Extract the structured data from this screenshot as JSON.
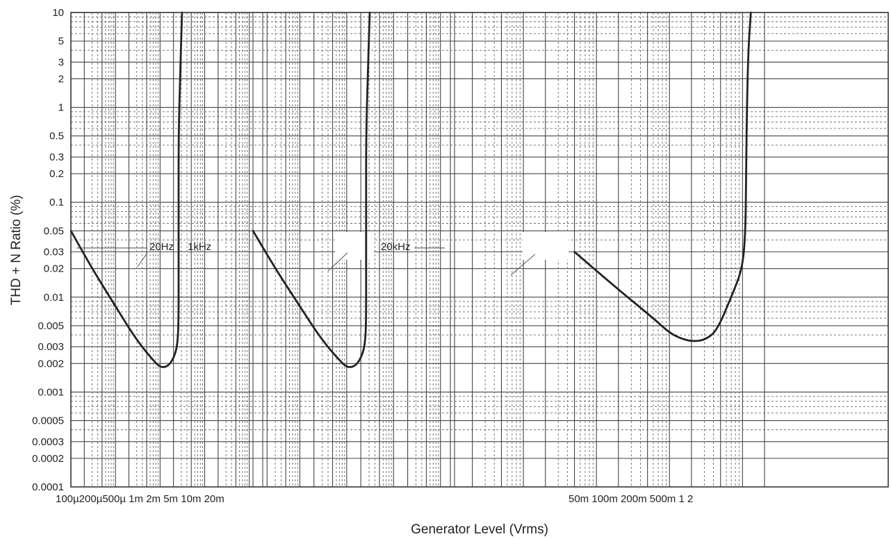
{
  "chart_data": {
    "type": "line",
    "title": "",
    "xlabel": "Generator Level (Vrms)",
    "ylabel": "THD + N Ratio (%)",
    "x_scale": "log",
    "y_scale": "log",
    "x_axis_layout": "three-segment broken axis",
    "xlim": [
      0.0001,
      2
    ],
    "ylim": [
      0.0001,
      10
    ],
    "grid": true,
    "y_ticks": [
      {
        "value": 10,
        "label": "10"
      },
      {
        "value": 5,
        "label": "5"
      },
      {
        "value": 3,
        "label": "3"
      },
      {
        "value": 2,
        "label": "2"
      },
      {
        "value": 1,
        "label": "1"
      },
      {
        "value": 0.5,
        "label": "0.5"
      },
      {
        "value": 0.3,
        "label": "0.3"
      },
      {
        "value": 0.2,
        "label": "0.2"
      },
      {
        "value": 0.1,
        "label": "0.1"
      },
      {
        "value": 0.05,
        "label": "0.05"
      },
      {
        "value": 0.03,
        "label": "0.03"
      },
      {
        "value": 0.02,
        "label": "0.02"
      },
      {
        "value": 0.01,
        "label": "0.01"
      },
      {
        "value": 0.005,
        "label": "0.005"
      },
      {
        "value": 0.003,
        "label": "0.003"
      },
      {
        "value": 0.002,
        "label": "0.002"
      },
      {
        "value": 0.001,
        "label": "0.001"
      },
      {
        "value": 0.0005,
        "label": "0.0005"
      },
      {
        "value": 0.0003,
        "label": "0.0003"
      },
      {
        "value": 0.0002,
        "label": "0.0002"
      },
      {
        "value": 0.0001,
        "label": "0.0001"
      }
    ],
    "x_tick_labels": [
      {
        "segment": 0,
        "value": 0.0001,
        "label": "100µ"
      },
      {
        "segment": 0,
        "value": 0.0002,
        "label": "200µ"
      },
      {
        "segment": 0,
        "value": 0.0005,
        "label": "500µ"
      },
      {
        "segment": 0,
        "value": 0.001,
        "label": "1m"
      },
      {
        "segment": 0,
        "value": 0.002,
        "label": "2m"
      },
      {
        "segment": 0,
        "value": 0.005,
        "label": "5m"
      },
      {
        "segment": 0,
        "value": 0.01,
        "label": "10m"
      },
      {
        "segment": 0,
        "value": 0.02,
        "label": "20m"
      },
      {
        "segment": 2,
        "value": 0.05,
        "label": "50m"
      },
      {
        "segment": 2,
        "value": 0.1,
        "label": "100m"
      },
      {
        "segment": 2,
        "value": 0.2,
        "label": "200m"
      },
      {
        "segment": 2,
        "value": 0.5,
        "label": "500m"
      },
      {
        "segment": 2,
        "value": 1,
        "label": "1"
      },
      {
        "segment": 2,
        "value": 2,
        "label": "2"
      }
    ],
    "annotations": [
      {
        "text": "20Hz",
        "series": 0
      },
      {
        "text": "1kHz",
        "series": 1
      },
      {
        "text": "20kHz",
        "series": 2
      }
    ],
    "series": [
      {
        "name": "20Hz",
        "color": "#222222",
        "points": [
          [
            0.0001,
            0.05
          ],
          [
            0.0003,
            0.02
          ],
          [
            0.001,
            0.008
          ],
          [
            0.003,
            0.0035
          ],
          [
            0.008,
            0.002
          ],
          [
            0.011,
            0.0018
          ],
          [
            0.016,
            0.0019
          ],
          [
            0.022,
            0.0025
          ],
          [
            0.025,
            0.0035
          ],
          [
            0.026,
            0.006
          ],
          [
            0.026,
            0.02
          ],
          [
            0.026,
            0.1
          ],
          [
            0.026,
            0.5
          ],
          [
            0.028,
            2
          ],
          [
            0.031,
            10
          ]
        ]
      },
      {
        "name": "1kHz",
        "color": "#222222",
        "points": [
          [
            0.0001,
            0.05
          ],
          [
            0.0003,
            0.02
          ],
          [
            0.001,
            0.008
          ],
          [
            0.003,
            0.0035
          ],
          [
            0.008,
            0.002
          ],
          [
            0.011,
            0.0018
          ],
          [
            0.016,
            0.0019
          ],
          [
            0.022,
            0.0025
          ],
          [
            0.025,
            0.0035
          ],
          [
            0.026,
            0.006
          ],
          [
            0.026,
            0.02
          ],
          [
            0.026,
            0.1
          ],
          [
            0.026,
            0.5
          ],
          [
            0.028,
            2
          ],
          [
            0.031,
            10
          ]
        ]
      },
      {
        "name": "20kHz",
        "color": "#222222",
        "points": [
          [
            0.005,
            0.03
          ],
          [
            0.02,
            0.012
          ],
          [
            0.06,
            0.006
          ],
          [
            0.1,
            0.0042
          ],
          [
            0.15,
            0.0036
          ],
          [
            0.22,
            0.0034
          ],
          [
            0.32,
            0.0036
          ],
          [
            0.45,
            0.0045
          ],
          [
            0.7,
            0.01
          ],
          [
            1.0,
            0.02
          ],
          [
            1.1,
            0.05
          ],
          [
            1.12,
            0.2
          ],
          [
            1.15,
            1
          ],
          [
            1.2,
            4
          ],
          [
            1.3,
            10
          ]
        ]
      }
    ]
  }
}
